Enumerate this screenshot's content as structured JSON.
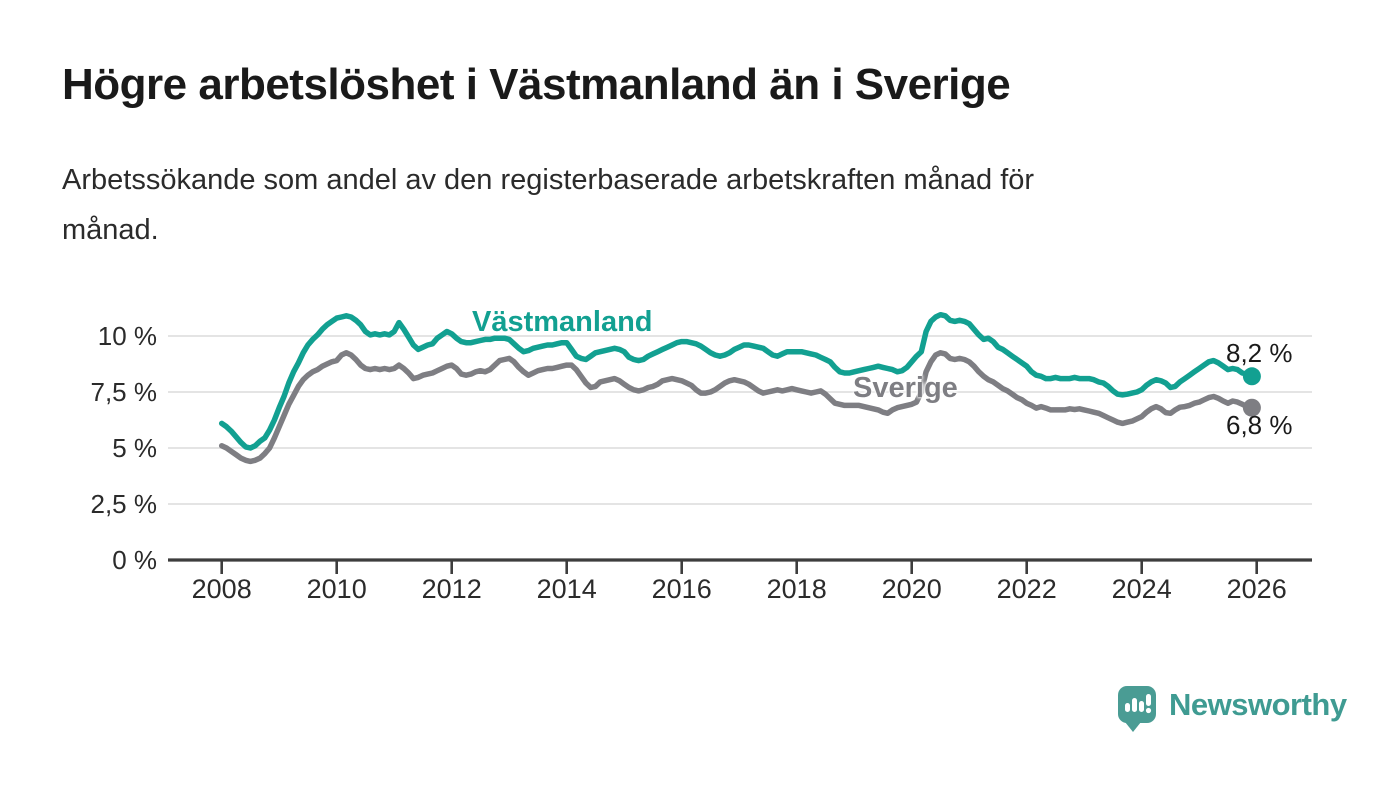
{
  "header": {
    "title": "Högre arbetslöshet i Västmanland än i Sverige",
    "subtitle_line1": "Arbetssökande som andel av den registerbaserade arbetskraften månad för",
    "subtitle_line2": "månad."
  },
  "chart_data": {
    "type": "line",
    "title": "Högre arbetslöshet i Västmanland än i Sverige",
    "subtitle": "Arbetssökande som andel av den registerbaserade arbetskraften månad för månad.",
    "x_unit": "month",
    "x_start_year": 2008,
    "x_end": "2025-12",
    "ylim": [
      0,
      11.6
    ],
    "grid": true,
    "legend_position": "inline-labels",
    "yticks": [
      0,
      2.5,
      5,
      7.5,
      10
    ],
    "ytick_labels": [
      "0 %",
      "2,5 %",
      "5 %",
      "7,5 %",
      "10 %"
    ],
    "xticks": [
      2008,
      2010,
      2012,
      2014,
      2016,
      2018,
      2020,
      2022,
      2024,
      2026
    ],
    "xtick_labels": [
      "2008",
      "2010",
      "2012",
      "2014",
      "2016",
      "2018",
      "2020",
      "2022",
      "2024",
      "2026"
    ],
    "series": [
      {
        "name": "Västmanland",
        "color": "#12A091",
        "end_label": "8,2 %",
        "end_value": 8.2,
        "values": [
          6.1,
          5.95,
          5.75,
          5.5,
          5.25,
          5.05,
          5.0,
          5.1,
          5.3,
          5.45,
          5.8,
          6.25,
          6.8,
          7.3,
          7.9,
          8.4,
          8.8,
          9.25,
          9.6,
          9.85,
          10.05,
          10.3,
          10.5,
          10.65,
          10.8,
          10.85,
          10.9,
          10.85,
          10.7,
          10.5,
          10.2,
          10.05,
          10.1,
          10.05,
          10.1,
          10.05,
          10.2,
          10.6,
          10.3,
          9.95,
          9.6,
          9.4,
          9.5,
          9.6,
          9.65,
          9.9,
          10.05,
          10.2,
          10.1,
          9.9,
          9.75,
          9.7,
          9.7,
          9.75,
          9.8,
          9.85,
          9.85,
          9.9,
          9.9,
          9.9,
          9.85,
          9.65,
          9.45,
          9.3,
          9.35,
          9.45,
          9.5,
          9.55,
          9.6,
          9.6,
          9.65,
          9.7,
          9.7,
          9.4,
          9.1,
          9.0,
          8.95,
          9.1,
          9.25,
          9.3,
          9.35,
          9.4,
          9.45,
          9.4,
          9.3,
          9.05,
          8.95,
          8.9,
          8.95,
          9.1,
          9.2,
          9.3,
          9.4,
          9.5,
          9.6,
          9.7,
          9.75,
          9.75,
          9.7,
          9.65,
          9.55,
          9.4,
          9.25,
          9.15,
          9.1,
          9.15,
          9.25,
          9.4,
          9.5,
          9.6,
          9.6,
          9.55,
          9.5,
          9.45,
          9.3,
          9.15,
          9.1,
          9.2,
          9.3,
          9.3,
          9.3,
          9.3,
          9.25,
          9.2,
          9.15,
          9.05,
          8.95,
          8.85,
          8.6,
          8.4,
          8.35,
          8.35,
          8.4,
          8.45,
          8.5,
          8.55,
          8.6,
          8.65,
          8.6,
          8.55,
          8.5,
          8.4,
          8.45,
          8.6,
          8.85,
          9.1,
          9.3,
          10.2,
          10.65,
          10.85,
          10.95,
          10.9,
          10.7,
          10.65,
          10.7,
          10.65,
          10.55,
          10.3,
          10.05,
          9.85,
          9.9,
          9.75,
          9.5,
          9.4,
          9.25,
          9.1,
          8.95,
          8.8,
          8.65,
          8.4,
          8.25,
          8.2,
          8.1,
          8.1,
          8.15,
          8.1,
          8.1,
          8.1,
          8.15,
          8.1,
          8.1,
          8.1,
          8.05,
          7.95,
          7.9,
          7.75,
          7.55,
          7.4,
          7.37,
          7.4,
          7.45,
          7.5,
          7.6,
          7.8,
          7.95,
          8.05,
          8.0,
          7.9,
          7.7,
          7.75,
          7.95,
          8.1,
          8.25,
          8.4,
          8.55,
          8.7,
          8.85,
          8.9,
          8.8,
          8.65,
          8.5,
          8.55,
          8.5,
          8.35,
          8.3,
          8.2
        ]
      },
      {
        "name": "Sverige",
        "color": "#7E7E83",
        "end_label": "6,8 %",
        "end_value": 6.8,
        "values": [
          5.1,
          5.0,
          4.85,
          4.7,
          4.55,
          4.45,
          4.4,
          4.45,
          4.55,
          4.75,
          5.0,
          5.45,
          5.95,
          6.45,
          6.95,
          7.35,
          7.75,
          8.05,
          8.25,
          8.4,
          8.5,
          8.65,
          8.75,
          8.85,
          8.9,
          9.15,
          9.25,
          9.15,
          8.95,
          8.7,
          8.55,
          8.5,
          8.55,
          8.5,
          8.55,
          8.5,
          8.55,
          8.7,
          8.55,
          8.35,
          8.1,
          8.15,
          8.25,
          8.3,
          8.35,
          8.45,
          8.55,
          8.65,
          8.7,
          8.55,
          8.3,
          8.25,
          8.3,
          8.4,
          8.45,
          8.4,
          8.5,
          8.7,
          8.9,
          8.95,
          9.0,
          8.85,
          8.6,
          8.4,
          8.25,
          8.35,
          8.45,
          8.5,
          8.55,
          8.55,
          8.6,
          8.65,
          8.7,
          8.7,
          8.5,
          8.2,
          7.9,
          7.7,
          7.75,
          7.95,
          8.0,
          8.05,
          8.1,
          8.0,
          7.85,
          7.7,
          7.6,
          7.55,
          7.6,
          7.7,
          7.75,
          7.85,
          8.0,
          8.05,
          8.1,
          8.05,
          8.0,
          7.9,
          7.8,
          7.6,
          7.45,
          7.45,
          7.5,
          7.6,
          7.75,
          7.9,
          8.0,
          8.05,
          8.0,
          7.95,
          7.85,
          7.7,
          7.55,
          7.45,
          7.5,
          7.55,
          7.6,
          7.55,
          7.6,
          7.65,
          7.6,
          7.55,
          7.5,
          7.45,
          7.5,
          7.55,
          7.4,
          7.2,
          7.0,
          6.95,
          6.9,
          6.9,
          6.9,
          6.9,
          6.85,
          6.8,
          6.75,
          6.7,
          6.6,
          6.55,
          6.7,
          6.8,
          6.85,
          6.9,
          6.95,
          7.05,
          7.5,
          8.4,
          8.85,
          9.15,
          9.25,
          9.2,
          9.0,
          8.95,
          9.0,
          8.95,
          8.85,
          8.65,
          8.4,
          8.2,
          8.05,
          7.95,
          7.8,
          7.65,
          7.55,
          7.4,
          7.25,
          7.15,
          7.0,
          6.9,
          6.78,
          6.85,
          6.78,
          6.7,
          6.7,
          6.7,
          6.7,
          6.75,
          6.72,
          6.75,
          6.7,
          6.65,
          6.6,
          6.55,
          6.45,
          6.35,
          6.25,
          6.15,
          6.1,
          6.15,
          6.2,
          6.3,
          6.4,
          6.6,
          6.75,
          6.85,
          6.75,
          6.58,
          6.55,
          6.7,
          6.82,
          6.85,
          6.9,
          7.0,
          7.05,
          7.15,
          7.25,
          7.3,
          7.22,
          7.1,
          7.0,
          7.1,
          7.05,
          6.95,
          6.85,
          6.8
        ]
      }
    ]
  },
  "colors": {
    "background": "#ffffff",
    "grid": "#dcdcdc",
    "axis": "#3d3d3d",
    "title_text": "#1a1a1a",
    "tick_text": "#2b2b2b",
    "vastmanland": "#12A091",
    "sverige": "#7E7E83",
    "brand": "#3F9B92"
  },
  "footer": {
    "brand": "Newsworthy",
    "logo_icon": "bar-chart-speech-bubble-icon"
  }
}
